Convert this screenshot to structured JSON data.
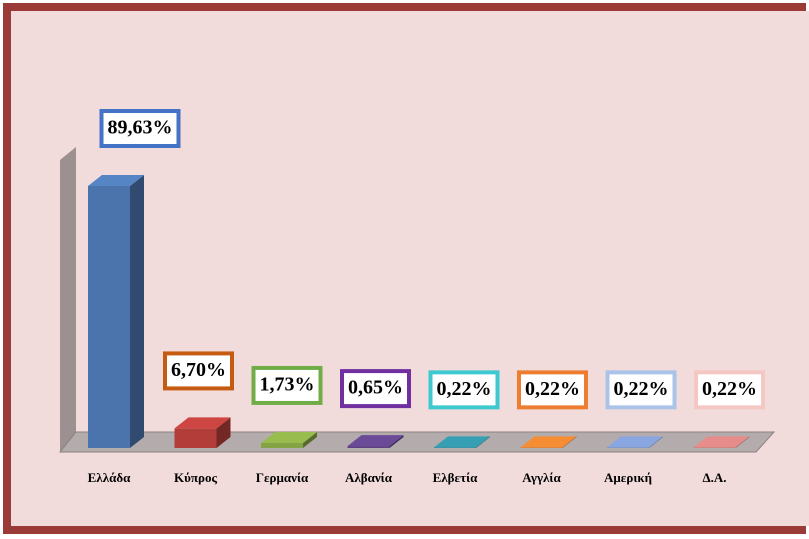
{
  "chart_data": {
    "type": "bar3d",
    "categories": [
      "Ελλάδα",
      "Κύπρος",
      "Γερμανία",
      "Αλβανία",
      "Ελβετία",
      "Αγγλία",
      "Αμερική",
      "Δ.Α."
    ],
    "values": [
      89.63,
      6.7,
      1.73,
      0.65,
      0.22,
      0.22,
      0.22,
      0.22
    ],
    "value_labels": [
      "89,63%",
      "6,70%",
      "1,73%",
      "0,65%",
      "0,22%",
      "0,22%",
      "0,22%",
      "0,22%"
    ],
    "colors": [
      "#4a74ab",
      "#b33d39",
      "#84a444",
      "#5d4184",
      "#2f8a9c",
      "#d57b2e",
      "#7890c4",
      "#c87a78"
    ],
    "label_border_colors": [
      "#4472c4",
      "#c55a11",
      "#70ad47",
      "#7030a0",
      "#3ec8cf",
      "#ed7d31",
      "#a9c4e8",
      "#f4c7c3"
    ]
  }
}
